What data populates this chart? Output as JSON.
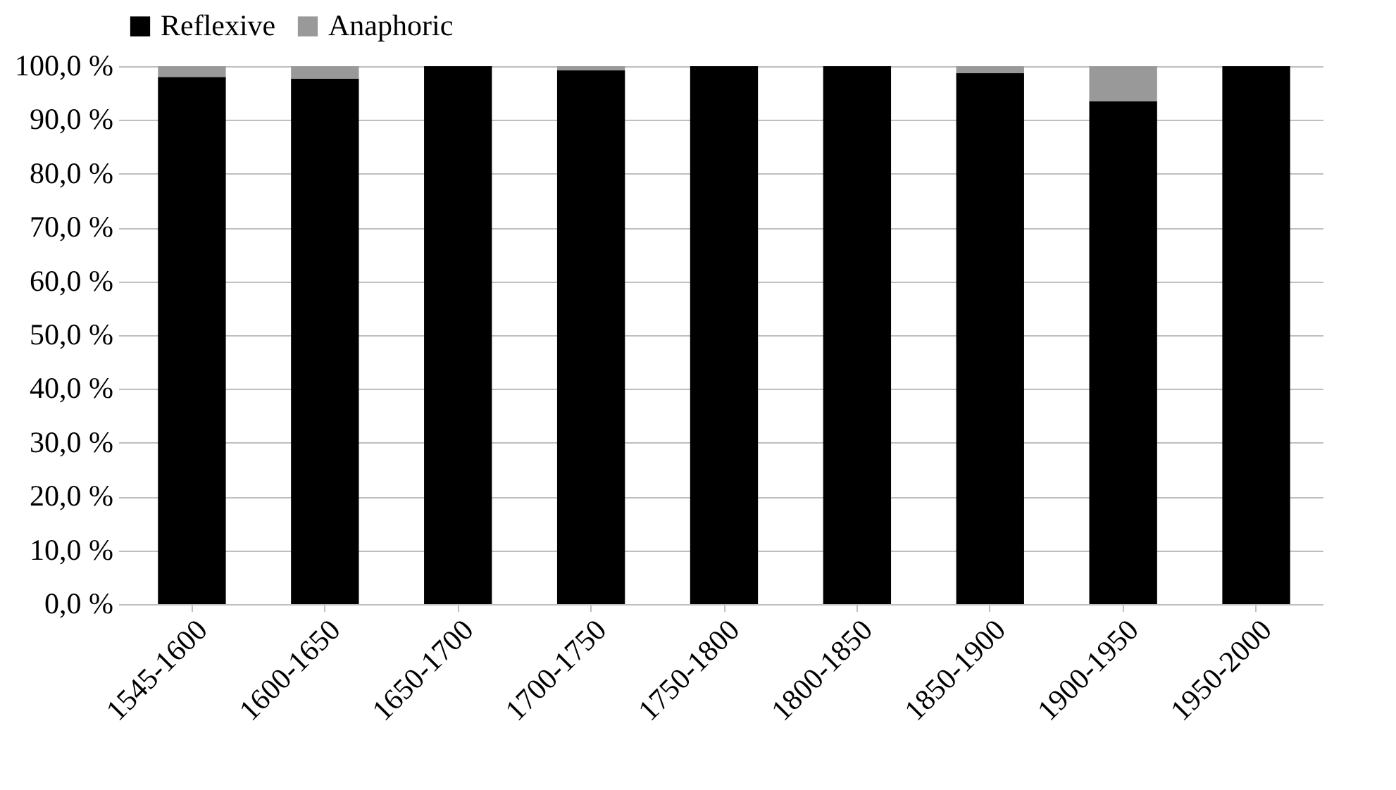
{
  "chart_data": {
    "type": "bar",
    "stacked": true,
    "categories": [
      "1545-1600",
      "1600-1650",
      "1650-1700",
      "1700-1750",
      "1750-1800",
      "1800-1850",
      "1850-1900",
      "1900-1950",
      "1950-2000"
    ],
    "series": [
      {
        "name": "Reflexive",
        "color": "#000000",
        "values": [
          98.0,
          97.7,
          100,
          99.2,
          100,
          100,
          98.7,
          93.5,
          100
        ]
      },
      {
        "name": "Anaphoric",
        "color": "#999999",
        "values": [
          2.0,
          2.3,
          0,
          0.8,
          0,
          0,
          1.3,
          6.5,
          0
        ]
      }
    ],
    "ylim": [
      0,
      100
    ],
    "yticks": [
      {
        "value": 0,
        "label": "0,0 %"
      },
      {
        "value": 10,
        "label": "10,0 %"
      },
      {
        "value": 20,
        "label": "20,0 %"
      },
      {
        "value": 30,
        "label": "30,0 %"
      },
      {
        "value": 40,
        "label": "40,0 %"
      },
      {
        "value": 50,
        "label": "50,0 %"
      },
      {
        "value": 60,
        "label": "60,0 %"
      },
      {
        "value": 70,
        "label": "70,0 %"
      },
      {
        "value": 80,
        "label": "80,0 %"
      },
      {
        "value": 90,
        "label": "90,0 %"
      },
      {
        "value": 100,
        "label": "100,0 %"
      }
    ],
    "grid": "y",
    "legend": "top"
  }
}
